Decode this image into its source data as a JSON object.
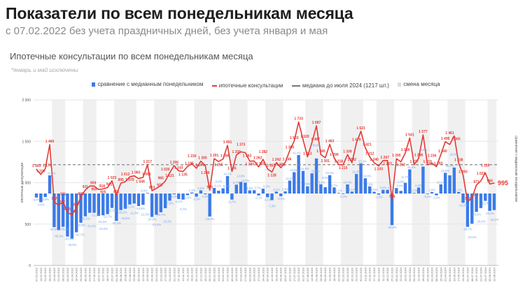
{
  "header": {
    "title": "Показатели по всем понедельникам месяца",
    "subtitle": "с 07.02.2022 без учета праздничных дней, без учета января и мая"
  },
  "chart_data": {
    "type": "bar+line",
    "title": "Ипотечные консультации по всем понедельникам месяца",
    "note": "*январь и май исключены",
    "ylabel": "ипотечные консультации",
    "y2label": "сравнение с медианным понедельником",
    "ylim": [
      0,
      2000
    ],
    "yticks": [
      0,
      500,
      1000,
      1500,
      2000
    ],
    "ytick_labels": [
      "0",
      "500",
      "1 000",
      "1 500",
      "2 000"
    ],
    "legend_position": "top-center",
    "legend": {
      "bars": "сравнение с медианным понедельником",
      "line": "ипотечные консультации",
      "median": "медиана до июля 2024 (1217 шт.)",
      "month": "смена месяца"
    },
    "median": 1217,
    "colors": {
      "bars": "#3b7be8",
      "line": "#e53935",
      "median": "#888888",
      "bar_labels": "#7aa6f0",
      "month_band": "#f0f0f0"
    },
    "dates": [
      "07.02.2022",
      "14.02.2022",
      "21.02.2022",
      "28.02.2022",
      "14.03.2022",
      "21.03.2022",
      "28.03.2022",
      "04.04.2022",
      "11.04.2022",
      "18.04.2022",
      "25.04.2022",
      "06.06.2022",
      "20.06.2022",
      "27.06.2022",
      "04.07.2022",
      "11.07.2022",
      "18.07.2022",
      "25.07.2022",
      "01.08.2022",
      "08.08.2022",
      "15.08.2022",
      "22.08.2022",
      "29.08.2022",
      "05.09.2022",
      "12.09.2022",
      "19.09.2022",
      "26.09.2022",
      "03.10.2022",
      "10.10.2022",
      "17.10.2022",
      "24.10.2022",
      "31.10.2022",
      "07.11.2022",
      "14.11.2022",
      "21.11.2022",
      "28.11.2022",
      "05.12.2022",
      "12.12.2022",
      "19.12.2022",
      "26.12.2022",
      "06.02.2023",
      "13.02.2023",
      "20.02.2023",
      "27.02.2023",
      "06.03.2023",
      "13.03.2023",
      "20.03.2023",
      "27.03.2023",
      "03.04.2023",
      "10.04.2023",
      "17.04.2023",
      "24.04.2023",
      "05.06.2023",
      "12.06.2023",
      "19.06.2023",
      "26.06.2023",
      "03.07.2023",
      "10.07.2023",
      "17.07.2023",
      "24.07.2023",
      "31.07.2023",
      "07.08.2023",
      "14.08.2023",
      "21.08.2023",
      "28.08.2023",
      "04.09.2023",
      "11.09.2023",
      "18.09.2023",
      "25.09.2023",
      "02.10.2023",
      "09.10.2023",
      "16.10.2023",
      "23.10.2023",
      "30.10.2023",
      "13.11.2023",
      "20.11.2023",
      "27.11.2023",
      "04.12.2023",
      "11.12.2023",
      "18.12.2023",
      "25.12.2023",
      "05.02.2024",
      "12.02.2024",
      "19.02.2024",
      "26.02.2024",
      "04.03.2024",
      "11.03.2024",
      "18.03.2024",
      "25.03.2024",
      "01.04.2024",
      "08.04.2024",
      "15.04.2024",
      "22.04.2024",
      "03.06.2024",
      "10.06.2024",
      "17.06.2024",
      "24.06.2024",
      "01.07.2024",
      "08.07.2024",
      "15.07.2024",
      "22.07.2024",
      "29.07.2024",
      "05.08.2024",
      "12.08.2024"
    ],
    "values": [
      1163,
      1100,
      1170,
      1460,
      767,
      727,
      771,
      640,
      611,
      697,
      825,
      911,
      959,
      959,
      918,
      925,
      941,
      1023,
      851,
      995,
      1012,
      1070,
      1083,
      1049,
      1065,
      1217,
      903,
      932,
      965,
      1020,
      1121,
      1206,
      1143,
      1135,
      1195,
      1230,
      1174,
      1260,
      1206,
      909,
      1291,
      1255,
      1286,
      1451,
      1135,
      1335,
      1373,
      1363,
      1260,
      1262,
      1191,
      1282,
      1167,
      1128,
      1242,
      1181,
      1246,
      1390,
      1503,
      1733,
      1520,
      1313,
      1487,
      1687,
      1340,
      1301,
      1463,
      1299,
      1218,
      1215,
      1339,
      1242,
      1479,
      1621,
      1421,
      1312,
      1240,
      1203,
      1267,
      1267,
      794,
      1290,
      1252,
      1359,
      1541,
      1217,
      1296,
      1577,
      1215,
      1236,
      1193,
      1340,
      1495,
      1461,
      1565,
      1238,
      1093,
      770,
      813,
      971,
      1022,
      1119,
      984,
      995
    ],
    "value_labels": [
      "1 163",
      "1 100",
      "1 170",
      "1 460",
      "767",
      "727",
      "771",
      "640",
      "611",
      "697",
      "825",
      "911",
      "959",
      "959",
      "918",
      "925",
      "941",
      "1 023",
      "851",
      "995",
      "1 012",
      "1 070",
      "1 083",
      "1 049",
      "1 065",
      "1 217",
      "903",
      "932",
      "965",
      "1 020",
      "1 121",
      "1 206",
      "1 143",
      "1 135",
      "1 195",
      "1 230",
      "1 174",
      "1 260",
      "1 206",
      "909",
      "1 291",
      "1 255",
      "1 286",
      "1 451",
      "1 135",
      "1 335",
      "1 373",
      "1 363",
      "1 260",
      "1 262",
      "1 191",
      "1 282",
      "1 167",
      "1 128",
      "1 242",
      "1 181",
      "1 246",
      "1 390",
      "1 503",
      "1 733",
      "1 520",
      "1 313",
      "1 487",
      "1 687",
      "1 340",
      "1 301",
      "1 463",
      "1 299",
      "1 218",
      "1 215",
      "1 339",
      "1 242",
      "1 479",
      "1 621",
      "1 421",
      "1 312",
      "1 240",
      "1 203",
      "1 267",
      "1 267",
      "794",
      "1 290",
      "1 252",
      "1 359",
      "1 541",
      "1 217",
      "1 296",
      "1 577",
      "1 215",
      "1 236",
      "1 193",
      "1 340",
      "1 495",
      "1 461",
      "1 565",
      "1 238",
      "1 093",
      "770",
      "813",
      "971",
      "1 022",
      "1 119",
      "984",
      "995"
    ],
    "pct": [
      -4.4,
      -9.6,
      -3.9,
      20.0,
      -37.0,
      -40.3,
      -36.6,
      -47.4,
      -49.8,
      -42.7,
      -32.2,
      -25.1,
      -21.2,
      -21.2,
      -24.6,
      -24.0,
      -22.7,
      -15.9,
      -30.1,
      -18.2,
      -16.8,
      -12.1,
      -11.0,
      -13.8,
      -12.5,
      0.0,
      -25.8,
      -23.4,
      -20.7,
      -16.2,
      -7.9,
      -0.9,
      -6.1,
      -6.7,
      -1.8,
      1.1,
      -3.5,
      3.5,
      -0.9,
      -25.3,
      6.1,
      3.1,
      5.7,
      19.2,
      -6.7,
      9.7,
      12.8,
      12.0,
      3.5,
      3.7,
      -2.1,
      5.3,
      -4.1,
      -7.3,
      2.1,
      -3.0,
      2.4,
      14.2,
      23.5,
      42.4,
      24.9,
      7.9,
      22.2,
      38.6,
      10.1,
      6.9,
      20.2,
      6.7,
      0.1,
      -0.2,
      10.0,
      2.1,
      21.5,
      33.2,
      16.8,
      7.8,
      1.9,
      -1.2,
      4.1,
      4.1,
      -34.8,
      6.0,
      2.9,
      11.7,
      26.6,
      0.0,
      6.5,
      29.6,
      -0.2,
      1.6,
      -2.0,
      10.1,
      22.8,
      20.0,
      28.6,
      1.7,
      -10.2,
      -36.7,
      -33.2,
      -20.2,
      -16.0,
      -8.1,
      -19.1,
      -18.2
    ],
    "pct_labels": [
      "-4,4%",
      "-9,6%",
      "-3,9%",
      "20,0%",
      "-37,0%",
      "-40,3%",
      "-36,6%",
      "-47,4%",
      "-49,8%",
      "-42,7%",
      "-32,2%",
      "-25,1%",
      "-21,2%",
      "-21,2%",
      "-24,6%",
      "-24,0%",
      "-22,7%",
      "-15,9%",
      "-30,1%",
      "-18,2%",
      "-16,8%",
      "-12,1%",
      "-11,0%",
      "-13,8%",
      "-12,5%",
      "0,0%",
      "-25,8%",
      "-23,4%",
      "-20,7%",
      "-16,2%",
      "-7,9%",
      "-0,9%",
      "-6,1%",
      "-6,7%",
      "-1,8%",
      "1,1%",
      "-3,5%",
      "3,5%",
      "-0,9%",
      "-25,3%",
      "6,1%",
      "3,1%",
      "5,7%",
      "19,2%",
      "-6,7%",
      "9,7%",
      "12,8%",
      "12,0%",
      "3,5%",
      "3,7%",
      "-2,1%",
      "5,3%",
      "-4,1%",
      "-7,3%",
      "2,1%",
      "-3,0%",
      "2,4%",
      "14,2%",
      "23,5%",
      "42,4%",
      "24,9%",
      "7,9%",
      "22,2%",
      "38,6%",
      "10,1%",
      "6,9%",
      "20,2%",
      "6,7%",
      "0,1%",
      "-0,2%",
      "10,0%",
      "2,1%",
      "21,5%",
      "33,2%",
      "16,8%",
      "7,8%",
      "1,9%",
      "-1,2%",
      "4,1%",
      "4,1%",
      "-34,8%",
      "6,0%",
      "2,9%",
      "11,7%",
      "26,6%",
      "0,0%",
      "6,5%",
      "29,6%",
      "-0,2%",
      "1,6%",
      "-2,0%",
      "10,1%",
      "22,8%",
      "20,0%",
      "28,6%",
      "1,7%",
      "-10,2%",
      "-36,7%",
      "-33,2%",
      "-20,2%",
      "-16,0%",
      "-8,1%",
      "-19,1%",
      "-18,2%"
    ]
  }
}
